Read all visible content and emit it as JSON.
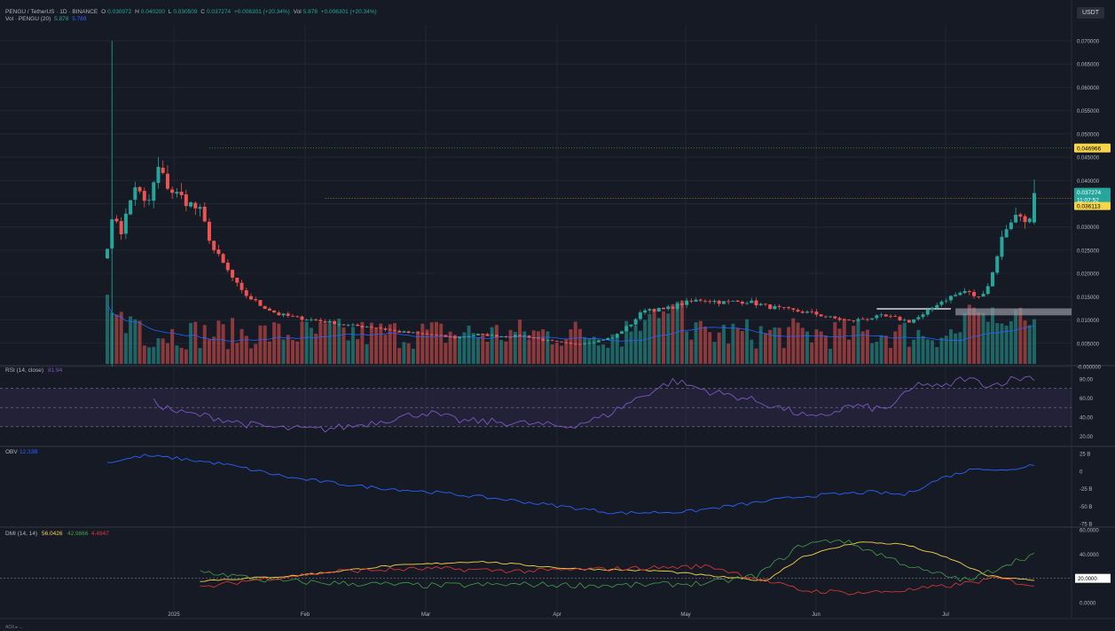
{
  "header": {
    "symbol": "PENGU / TetherUS · 1D · BINANCE",
    "o_label": "O",
    "o": "0.030972",
    "h_label": "H",
    "h": "0.040200",
    "l_label": "L",
    "l": "0.030509",
    "c_label": "C",
    "c": "0.037274",
    "chg": "+0.006301 (+20.34%)",
    "vol_label": "Vol",
    "vol": "5.878",
    "vol_chg": "+0.006301 (+20.34%)",
    "vol_line_label": "Vol · PENGU (20)",
    "vol_line_v1": "5.878",
    "vol_line_v2": "5.789"
  },
  "quote_button": "USDT",
  "price_tags": {
    "high": "0.046966",
    "last": "0.037274",
    "timer": "11:07:52",
    "level": "0.036113"
  },
  "pane_labels": {
    "rsi": "RSI (14, close)",
    "rsi_val": "81.94",
    "obv": "OBV",
    "obv_val": "12.33B",
    "dmi": "DMI (14, 14)",
    "dmi_adx": "56.0426",
    "dmi_plus": "42.9866",
    "dmi_minus": "4.4947"
  },
  "bottom_text": "ADX  ▸  ...",
  "colors": {
    "bg": "#161a25",
    "up": "#26a69a",
    "down": "#ef5350",
    "grid": "#222633",
    "text": "#b2b5be",
    "vol_ma": "#2962ff",
    "rsi": "#7e57c2",
    "obv": "#2962ff",
    "adx": "#f7d54a",
    "di_plus": "#43a047",
    "di_minus": "#e53935",
    "tag_yellow": "#f7d54a"
  },
  "chart_data": {
    "type": "candlestick",
    "x_ticks": [
      "2025",
      "Feb",
      "Mar",
      "Apr",
      "May",
      "Jun",
      "Jul"
    ],
    "price_axis": [
      "0.070000",
      "0.065000",
      "0.060000",
      "0.055000",
      "0.050000",
      "0.045000",
      "0.040000",
      "0.035000",
      "0.030000",
      "0.025000",
      "0.020000",
      "0.015000",
      "0.010000",
      "0.005000",
      "-0.000000"
    ],
    "rsi_axis": [
      "80.00",
      "60.00",
      "40.00",
      "20.00"
    ],
    "rsi_levels": [
      70,
      50,
      30
    ],
    "obv_axis": [
      "25 B",
      "0",
      "-25 B",
      "-50 B",
      "-75 B"
    ],
    "dmi_axis": [
      "60.0000",
      "40.0000",
      "20.0000",
      "0.0000"
    ],
    "dmi_level": 20,
    "price_anchors": [
      [
        0,
        0.0262
      ],
      [
        3,
        0.033
      ],
      [
        6,
        0.029
      ],
      [
        12,
        0.039
      ],
      [
        17,
        0.034
      ],
      [
        22,
        0.0425
      ],
      [
        27,
        0.038
      ],
      [
        33,
        0.036
      ],
      [
        40,
        0.0333
      ],
      [
        46,
        0.025
      ],
      [
        52,
        0.0205
      ],
      [
        58,
        0.016
      ],
      [
        66,
        0.0132
      ],
      [
        74,
        0.0112
      ],
      [
        82,
        0.0105
      ],
      [
        92,
        0.0098
      ],
      [
        105,
        0.0088
      ],
      [
        115,
        0.0085
      ],
      [
        125,
        0.0075
      ],
      [
        140,
        0.0068
      ],
      [
        150,
        0.0062
      ],
      [
        160,
        0.0069
      ],
      [
        170,
        0.0065
      ],
      [
        180,
        0.0066
      ],
      [
        190,
        0.0055
      ],
      [
        200,
        0.0048
      ],
      [
        208,
        0.0052
      ],
      [
        218,
        0.0062
      ],
      [
        226,
        0.0092
      ],
      [
        232,
        0.0124
      ],
      [
        240,
        0.0122
      ],
      [
        248,
        0.0135
      ],
      [
        256,
        0.0144
      ],
      [
        266,
        0.0138
      ],
      [
        276,
        0.014
      ],
      [
        286,
        0.0128
      ],
      [
        296,
        0.012
      ],
      [
        304,
        0.0115
      ],
      [
        312,
        0.0105
      ],
      [
        320,
        0.0098
      ],
      [
        326,
        0.0102
      ],
      [
        334,
        0.0108
      ],
      [
        340,
        0.0104
      ],
      [
        346,
        0.0097
      ],
      [
        352,
        0.011
      ],
      [
        358,
        0.0135
      ],
      [
        364,
        0.015
      ],
      [
        370,
        0.0162
      ],
      [
        376,
        0.0148
      ],
      [
        381,
        0.0182
      ],
      [
        385,
        0.0262
      ],
      [
        389,
        0.0312
      ],
      [
        393,
        0.0326
      ],
      [
        397,
        0.0318
      ],
      [
        399,
        0.0306
      ],
      [
        400,
        0.0373
      ]
    ],
    "candle_count": 201,
    "high_level": 0.046966,
    "last_price": 0.037274,
    "resistance_level": 0.036113
  }
}
